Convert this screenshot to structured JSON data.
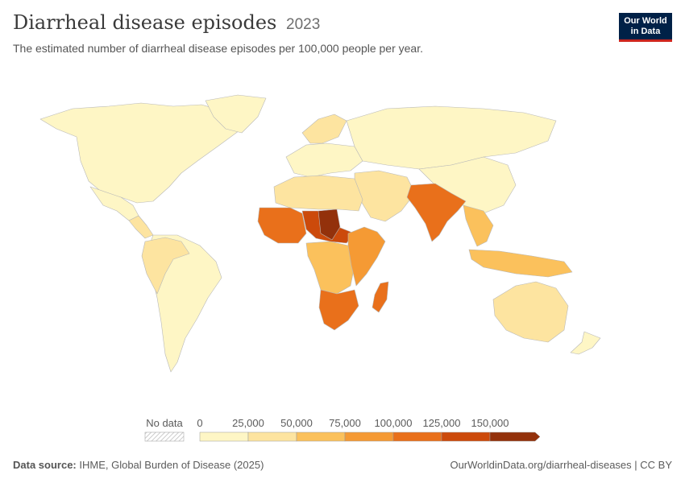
{
  "title": "Diarrheal disease episodes",
  "year": "2023",
  "subtitle": "The estimated number of diarrheal disease episodes per 100,000 people per year.",
  "logo": {
    "line1": "Our World",
    "line2": "in Data"
  },
  "legend": {
    "no_data_label": "No data",
    "ticks": [
      "0",
      "25,000",
      "50,000",
      "75,000",
      "100,000",
      "125,000",
      "150,000"
    ],
    "colors": [
      "#fef6c5",
      "#fde4a0",
      "#fbc15c",
      "#f59a34",
      "#e9701b",
      "#cc4a0b",
      "#93310b"
    ]
  },
  "footer": {
    "source_label": "Data source:",
    "source_value": "IHME, Global Burden of Disease (2025)",
    "url": "OurWorldinData.org/diarrheal-diseases | CC BY"
  },
  "regions": [
    {
      "name": "North America",
      "bin": 0
    },
    {
      "name": "Greenland",
      "bin": 0
    },
    {
      "name": "Mexico",
      "bin": 0
    },
    {
      "name": "Central America",
      "bin": 1
    },
    {
      "name": "South America",
      "bin": 0
    },
    {
      "name": "Andean countries",
      "bin": 1
    },
    {
      "name": "Europe",
      "bin": 0
    },
    {
      "name": "Scandinavia",
      "bin": 1
    },
    {
      "name": "Russia & Central Asia",
      "bin": 0
    },
    {
      "name": "China",
      "bin": 0
    },
    {
      "name": "Middle East",
      "bin": 1
    },
    {
      "name": "North Africa",
      "bin": 1
    },
    {
      "name": "West Africa",
      "bin": 4
    },
    {
      "name": "Sahel",
      "bin": 5
    },
    {
      "name": "Chad",
      "bin": 6
    },
    {
      "name": "Central Africa",
      "bin": 2
    },
    {
      "name": "East Africa",
      "bin": 3
    },
    {
      "name": "Southern Africa",
      "bin": 4
    },
    {
      "name": "Madagascar",
      "bin": 4
    },
    {
      "name": "South Asia",
      "bin": 4
    },
    {
      "name": "Southeast Asia",
      "bin": 2
    },
    {
      "name": "Indonesia",
      "bin": 2
    },
    {
      "name": "Australia",
      "bin": 1
    },
    {
      "name": "New Zealand",
      "bin": 0
    }
  ]
}
